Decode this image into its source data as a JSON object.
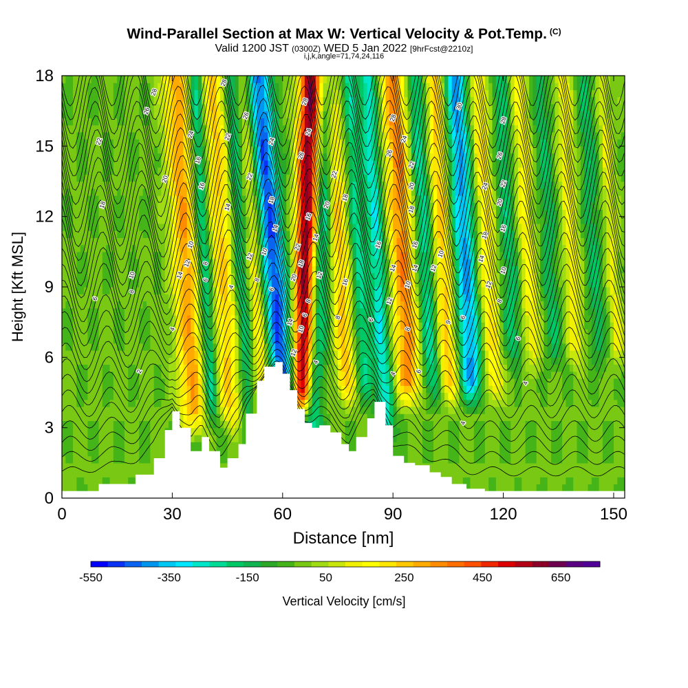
{
  "header": {
    "title": "Wind-Parallel Section at Max W: Vertical Velocity & Pot.Temp.",
    "copyright": "(C)",
    "valid_main": "Valid 1200 JST",
    "valid_small": "(0300Z)",
    "valid_date": "WED 5 Jan 2022",
    "forecast": "[9hrFcst@2210z]",
    "params": "i,j,k,angle=71,74,24,116"
  },
  "chart_data": {
    "type": "heatmap",
    "xlabel": "Distance [nm]",
    "ylabel": "Height [Kft MSL]",
    "xlim": [
      0,
      153
    ],
    "ylim": [
      0,
      18
    ],
    "x_ticks": [
      "0",
      "30",
      "60",
      "90",
      "120",
      "150"
    ],
    "x_tick_values": [
      0,
      30,
      60,
      90,
      120,
      150
    ],
    "y_ticks": [
      "0",
      "3",
      "6",
      "9",
      "12",
      "15",
      "18"
    ],
    "y_tick_values": [
      0,
      3,
      6,
      9,
      12,
      15,
      18
    ],
    "colorbar": {
      "label": "Vertical Velocity [cm/s]",
      "tick_labels": [
        "-550",
        "-350",
        "-150",
        "50",
        "250",
        "450",
        "650"
      ],
      "tick_values": [
        -550,
        -350,
        -150,
        50,
        250,
        450,
        650
      ],
      "min": -550,
      "max": 750,
      "step": 50,
      "colors": [
        "#0000ff",
        "#0a32f5",
        "#0a64f0",
        "#0096f0",
        "#00c8f5",
        "#00e6ff",
        "#00e6c8",
        "#00dc96",
        "#00c864",
        "#10b450",
        "#2ca828",
        "#44b418",
        "#78c814",
        "#a0dc14",
        "#c8e60a",
        "#f0f000",
        "#ffff00",
        "#ffe600",
        "#ffc800",
        "#ffaa00",
        "#ff8c00",
        "#ff6e00",
        "#ff5000",
        "#f02800",
        "#dc0000",
        "#b40014",
        "#8c0028",
        "#6e0050",
        "#5a0082",
        "#500096"
      ]
    },
    "terrain_kft": {
      "x": [
        0,
        5,
        10,
        15,
        20,
        25,
        28,
        30,
        32,
        35,
        38,
        40,
        43,
        45,
        48,
        50,
        53,
        55,
        58,
        60,
        62,
        64,
        66,
        68,
        70,
        73,
        76,
        78,
        80,
        83,
        85,
        88,
        90,
        93,
        96,
        100,
        103,
        106,
        110,
        115,
        120,
        125,
        130,
        135,
        140,
        145,
        150,
        153
      ],
      "y": [
        0.3,
        0.3,
        0.6,
        0.6,
        1.0,
        1.7,
        2.9,
        3.7,
        3.0,
        2.0,
        2.6,
        2.0,
        1.3,
        1.7,
        2.3,
        3.6,
        5.0,
        5.6,
        5.8,
        5.3,
        4.6,
        3.8,
        3.2,
        3.0,
        3.1,
        2.8,
        2.3,
        2.0,
        2.6,
        3.4,
        4.1,
        3.1,
        1.8,
        1.5,
        1.4,
        1.1,
        0.9,
        0.6,
        0.4,
        0.3,
        0.3,
        0.3,
        0.3,
        0.3,
        0.3,
        0.3,
        0.3,
        0.3
      ]
    },
    "field_note": "vertical velocity bands (cm/s) vs distance",
    "bands": [
      {
        "x": 34,
        "w": 3.5,
        "amp": 380,
        "tilt": -3,
        "ymin": 3.8
      },
      {
        "x": 39,
        "w": 2.0,
        "amp": -250,
        "tilt": -3,
        "ymin": 4.0
      },
      {
        "x": 44,
        "w": 3.0,
        "amp": 300,
        "tilt": -3,
        "ymin": 4.0
      },
      {
        "x": 49,
        "w": 2.0,
        "amp": -200,
        "tilt": -3,
        "ymin": 4.0
      },
      {
        "x": 53,
        "w": 2.5,
        "amp": 220,
        "tilt": -3,
        "ymin": 4.0
      },
      {
        "x": 58,
        "w": 3.5,
        "amp": -520,
        "tilt": -5,
        "ymin": 4.5
      },
      {
        "x": 66,
        "w": 3.0,
        "amp": 720,
        "tilt": 1.5,
        "ymin": 4.5
      },
      {
        "x": 70,
        "w": 2.5,
        "amp": -280,
        "tilt": 3,
        "ymin": 3.0
      },
      {
        "x": 76,
        "w": 2.5,
        "amp": 320,
        "tilt": -3,
        "ymin": 5.0
      },
      {
        "x": 81,
        "w": 2.0,
        "amp": -220,
        "tilt": -3,
        "ymin": 5.0
      },
      {
        "x": 86,
        "w": 2.5,
        "amp": -300,
        "tilt": -3,
        "ymin": 3.0
      },
      {
        "x": 93,
        "w": 3.5,
        "amp": 420,
        "tilt": -3,
        "ymin": 5.0
      },
      {
        "x": 99,
        "w": 2.5,
        "amp": -250,
        "tilt": -3,
        "ymin": 5.0
      },
      {
        "x": 104,
        "w": 2.5,
        "amp": 320,
        "tilt": -3,
        "ymin": 5.0
      },
      {
        "x": 110,
        "w": 3.0,
        "amp": -420,
        "tilt": -3,
        "ymin": 5.0
      },
      {
        "x": 116,
        "w": 2.5,
        "amp": 250,
        "tilt": -3,
        "ymin": 5.0
      },
      {
        "x": 122,
        "w": 2.5,
        "amp": -180,
        "tilt": -3,
        "ymin": 6.5
      },
      {
        "x": 127,
        "w": 2.5,
        "amp": 200,
        "tilt": -3,
        "ymin": 6.5
      },
      {
        "x": 133,
        "w": 2.5,
        "amp": -150,
        "tilt": -3,
        "ymin": 6.5
      },
      {
        "x": 139,
        "w": 2.5,
        "amp": 180,
        "tilt": -3,
        "ymin": 6.5
      },
      {
        "x": 145,
        "w": 2.5,
        "amp": -150,
        "tilt": -3,
        "ymin": 6.5
      },
      {
        "x": 150,
        "w": 2.0,
        "amp": 150,
        "tilt": -3,
        "ymin": 6.5
      }
    ],
    "theta_labels": [
      {
        "text": "28",
        "x": 25,
        "y": 17.3
      },
      {
        "text": "26",
        "x": 23,
        "y": 16.5
      },
      {
        "text": "22",
        "x": 10,
        "y": 15.2
      },
      {
        "text": "20",
        "x": 28,
        "y": 13.6
      },
      {
        "text": "18",
        "x": 11,
        "y": 12.5
      },
      {
        "text": "10",
        "x": 19,
        "y": 9.5
      },
      {
        "text": "8",
        "x": 19,
        "y": 8.8
      },
      {
        "text": "6",
        "x": 9,
        "y": 8.5
      },
      {
        "text": "4",
        "x": 30,
        "y": 7.2
      },
      {
        "text": "2",
        "x": 21,
        "y": 5.4
      },
      {
        "text": "28",
        "x": 44,
        "y": 17.7
      },
      {
        "text": "24",
        "x": 35,
        "y": 15.5
      },
      {
        "text": "22",
        "x": 45,
        "y": 15.4
      },
      {
        "text": "16",
        "x": 37,
        "y": 14.4
      },
      {
        "text": "16",
        "x": 38,
        "y": 13.3
      },
      {
        "text": "14",
        "x": 45,
        "y": 12.4
      },
      {
        "text": "10",
        "x": 35,
        "y": 10.8
      },
      {
        "text": "12",
        "x": 34,
        "y": 10.0
      },
      {
        "text": "14",
        "x": 32,
        "y": 9.5
      },
      {
        "text": "8",
        "x": 39,
        "y": 10.0
      },
      {
        "text": "6",
        "x": 39,
        "y": 9.3
      },
      {
        "text": "4",
        "x": 46,
        "y": 9.0
      },
      {
        "text": "26",
        "x": 50,
        "y": 16.3
      },
      {
        "text": "22",
        "x": 51,
        "y": 13.7
      },
      {
        "text": "12",
        "x": 51,
        "y": 10.3
      },
      {
        "text": "10",
        "x": 55,
        "y": 10.5
      },
      {
        "text": "8",
        "x": 53,
        "y": 9.3
      },
      {
        "text": "6",
        "x": 57,
        "y": 8.9
      },
      {
        "text": "24",
        "x": 57,
        "y": 15.2
      },
      {
        "text": "18",
        "x": 57,
        "y": 12.7
      },
      {
        "text": "14",
        "x": 58,
        "y": 11.5
      },
      {
        "text": "28",
        "x": 66,
        "y": 16.9
      },
      {
        "text": "24",
        "x": 67,
        "y": 15.6
      },
      {
        "text": "26",
        "x": 65,
        "y": 14.6
      },
      {
        "text": "16",
        "x": 67,
        "y": 12.0
      },
      {
        "text": "22",
        "x": 64,
        "y": 10.7
      },
      {
        "text": "18",
        "x": 65,
        "y": 10.0
      },
      {
        "text": "20",
        "x": 63,
        "y": 9.4
      },
      {
        "text": "8",
        "x": 67,
        "y": 8.4
      },
      {
        "text": "6",
        "x": 66,
        "y": 7.8
      },
      {
        "text": "14",
        "x": 62,
        "y": 7.5
      },
      {
        "text": "10",
        "x": 65,
        "y": 7.2
      },
      {
        "text": "12",
        "x": 63,
        "y": 6.2
      },
      {
        "text": "4",
        "x": 69,
        "y": 5.8
      },
      {
        "text": "14",
        "x": 69,
        "y": 11.1
      },
      {
        "text": "12",
        "x": 70,
        "y": 9.5
      },
      {
        "text": "20",
        "x": 72,
        "y": 12.5
      },
      {
        "text": "22",
        "x": 74,
        "y": 13.8
      },
      {
        "text": "18",
        "x": 77,
        "y": 12.8
      },
      {
        "text": "16",
        "x": 77,
        "y": 9.2
      },
      {
        "text": "8",
        "x": 75,
        "y": 7.7
      },
      {
        "text": "6",
        "x": 84,
        "y": 7.6
      },
      {
        "text": "16",
        "x": 86,
        "y": 10.8
      },
      {
        "text": "28",
        "x": 90,
        "y": 16.2
      },
      {
        "text": "26",
        "x": 89,
        "y": 14.7
      },
      {
        "text": "24",
        "x": 93,
        "y": 15.3
      },
      {
        "text": "22",
        "x": 95,
        "y": 14.2
      },
      {
        "text": "20",
        "x": 95,
        "y": 13.3
      },
      {
        "text": "18",
        "x": 95,
        "y": 12.3
      },
      {
        "text": "14",
        "x": 90,
        "y": 9.8
      },
      {
        "text": "12",
        "x": 89,
        "y": 8.4
      },
      {
        "text": "10",
        "x": 94,
        "y": 9.1
      },
      {
        "text": "8",
        "x": 94,
        "y": 7.2
      },
      {
        "text": "16",
        "x": 96,
        "y": 10.8
      },
      {
        "text": "14",
        "x": 96,
        "y": 9.8
      },
      {
        "text": "4",
        "x": 90,
        "y": 5.3
      },
      {
        "text": "6",
        "x": 97,
        "y": 5.4
      },
      {
        "text": "12",
        "x": 101,
        "y": 9.8
      },
      {
        "text": "10",
        "x": 103,
        "y": 10.4
      },
      {
        "text": "30",
        "x": 108,
        "y": 16.7
      },
      {
        "text": "9",
        "x": 105,
        "y": 7.5
      },
      {
        "text": "6",
        "x": 109,
        "y": 7.7
      },
      {
        "text": "4",
        "x": 109,
        "y": 3.2
      },
      {
        "text": "28",
        "x": 120,
        "y": 16.1
      },
      {
        "text": "26",
        "x": 119,
        "y": 14.6
      },
      {
        "text": "24",
        "x": 115,
        "y": 13.3
      },
      {
        "text": "22",
        "x": 120,
        "y": 13.4
      },
      {
        "text": "20",
        "x": 119,
        "y": 12.6
      },
      {
        "text": "16",
        "x": 120,
        "y": 11.5
      },
      {
        "text": "18",
        "x": 115,
        "y": 11.2
      },
      {
        "text": "14",
        "x": 114,
        "y": 10.2
      },
      {
        "text": "12",
        "x": 116,
        "y": 9.1
      },
      {
        "text": "10",
        "x": 120,
        "y": 9.7
      },
      {
        "text": "8",
        "x": 119,
        "y": 8.4
      },
      {
        "text": "6",
        "x": 124,
        "y": 6.8
      },
      {
        "text": "4",
        "x": 126,
        "y": 4.9
      }
    ]
  }
}
